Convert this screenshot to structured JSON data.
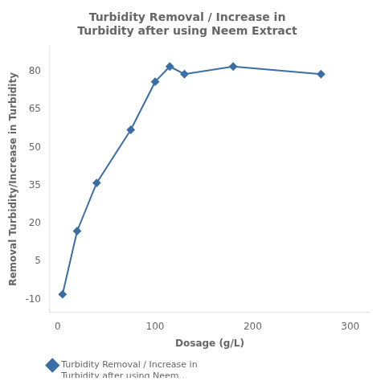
{
  "chart_data": {
    "type": "line",
    "title": "Turbidity Removal / Increase in\nTurbidity after using Neem Extract",
    "x_label": "Dosage (g/L)",
    "y_label": "Removal Turbidity/Increase in Turbidity",
    "x": [
      5,
      20,
      40,
      75,
      100,
      115,
      130,
      180,
      270
    ],
    "series": [
      {
        "name": "Turbidity Removal / Increase in\nTurbidity after using Neem…",
        "color": "#3b6ea5",
        "marker": "diamond",
        "line_style": "solid",
        "values": [
          -8,
          17,
          36,
          57,
          76,
          82,
          79,
          82,
          79
        ]
      }
    ],
    "xlim": [
      -8,
      320
    ],
    "xticks": [
      0,
      100,
      200,
      300
    ],
    "ylim": [
      -15,
      90
    ],
    "yticks": [
      -10,
      5,
      20,
      35,
      50,
      65,
      80
    ],
    "grid": false,
    "legend": "bottom"
  }
}
